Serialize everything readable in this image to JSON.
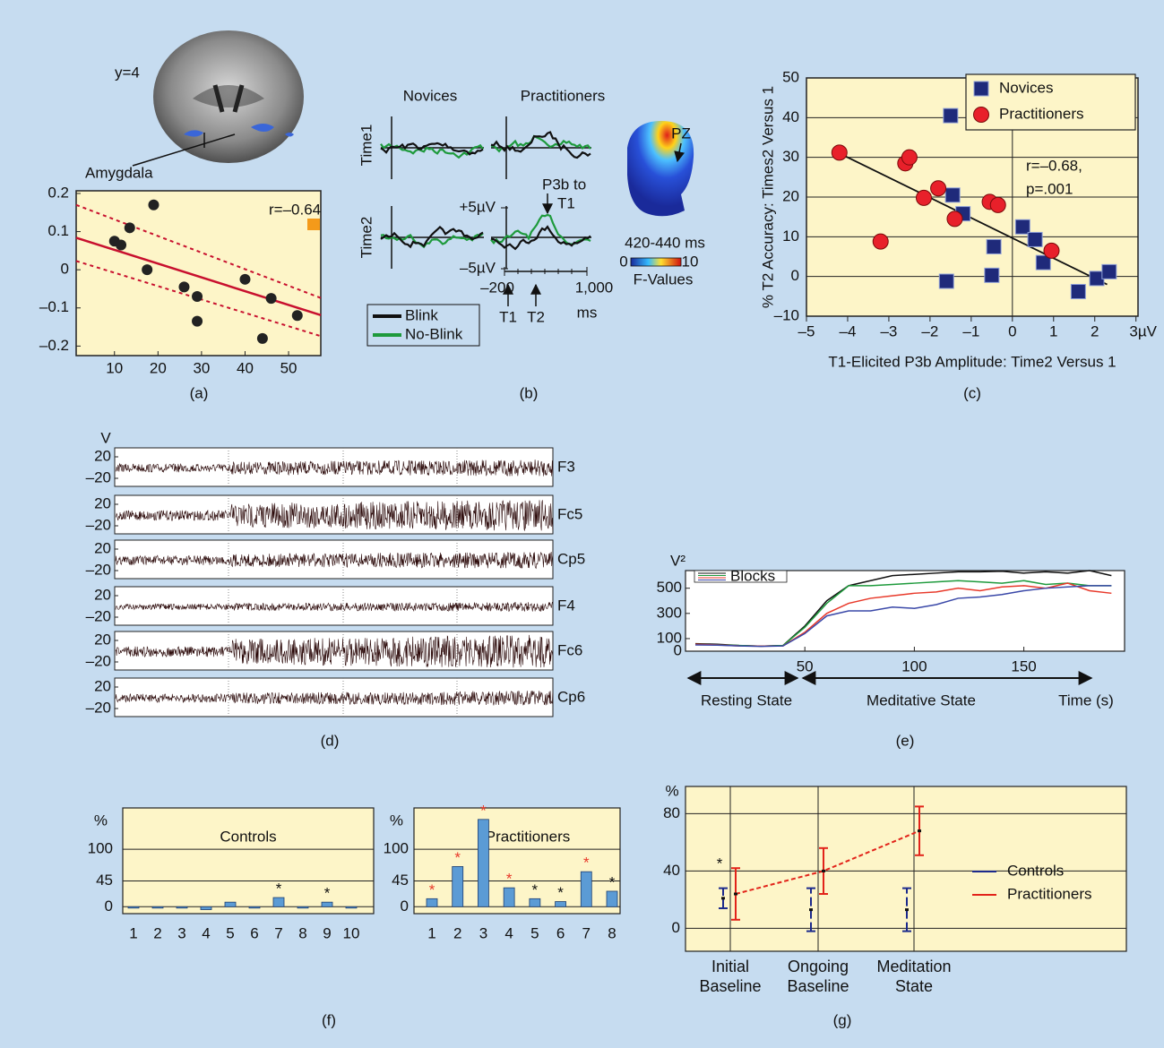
{
  "chart_data": [
    {
      "type": "scatter",
      "panel": "(a)",
      "annotations": [
        "y=4",
        "Amygdala",
        "r=–0.64"
      ],
      "xlim": [
        1.2,
        57.4
      ],
      "ylim": [
        -0.225,
        0.207
      ],
      "xticks": [
        10,
        20,
        30,
        40,
        50
      ],
      "yticks": [
        0.2,
        0.1,
        0,
        {
          "value": -0.1,
          "label": "–0.1"
        },
        {
          "value": -0.2,
          "label": "–0.2"
        }
      ],
      "series": [
        {
          "color": "#222222",
          "x": [
            10,
            11.5,
            13.5,
            17.5,
            19,
            26,
            29,
            29,
            40,
            44,
            46,
            52
          ],
          "values": [
            0.075,
            0.065,
            0.11,
            0.0,
            0.17,
            -0.045,
            -0.07,
            -0.135,
            -0.025,
            -0.18,
            -0.075,
            -0.12
          ]
        }
      ],
      "lines": [
        {
          "color": "#c8102e",
          "dash": false,
          "x": [
            1.2,
            57.4
          ],
          "values": [
            0.084,
            -0.119
          ]
        },
        {
          "color": "#c8102e",
          "dash": true,
          "x": [
            1.2,
            57.4
          ],
          "values": [
            0.17,
            -0.074
          ]
        },
        {
          "color": "#c8102e",
          "dash": true,
          "x": [
            1.2,
            57.4
          ],
          "values": [
            0.023,
            -0.174
          ]
        }
      ]
    },
    {
      "type": "erp",
      "panel": "(b)",
      "column_titles": [
        "Novices",
        "Practitioners"
      ],
      "row_titles": [
        "Time1",
        "Time2"
      ],
      "xticks": [
        {
          "value": -200,
          "label": "–200"
        },
        {
          "value": 1000,
          "label": "1,000"
        }
      ],
      "xunit": "ms",
      "yticks": [
        {
          "value": 5,
          "label": "+5µV"
        },
        {
          "value": -5,
          "label": "–5µV"
        }
      ],
      "annotations": [
        "P3b to",
        "T1",
        "PZ",
        "420-440 ms",
        "F-Values"
      ],
      "markers": [
        "T1",
        "T2"
      ],
      "colorbar_lim": [
        0,
        10
      ],
      "legend": [
        {
          "name": "Blink",
          "color": "#111111"
        },
        {
          "name": "No-Blink",
          "color": "#1e9a3c"
        }
      ]
    },
    {
      "type": "scatter",
      "panel": "(c)",
      "xlabel": "T1-Elicited P3b Amplitude: Time2 Versus 1",
      "ylabel": "% T2 Accuracy: Times2 Versus 1",
      "legend": "upper right",
      "grid": true,
      "annotations": [
        "r=–0.68,",
        "p=.001"
      ],
      "xlim": [
        -5,
        3.05
      ],
      "ylim": [
        -10,
        50
      ],
      "xticks": [
        {
          "value": -5,
          "label": "–5"
        },
        {
          "value": -4,
          "label": "–4"
        },
        {
          "value": -3,
          "label": "–3"
        },
        {
          "value": -2,
          "label": "–2"
        },
        {
          "value": -1,
          "label": "–1"
        },
        0,
        1,
        2,
        {
          "value": 3,
          "label": "3µV"
        }
      ],
      "yticks": [
        {
          "value": -10,
          "label": "–10"
        },
        0,
        10,
        20,
        30,
        40,
        50
      ],
      "series": [
        {
          "name": "Novices",
          "color": "#1f2a7a",
          "marker": "square",
          "x": [
            -1.5,
            -1.45,
            -1.2,
            -1.6,
            -0.5,
            -0.45,
            0.25,
            0.55,
            0.75,
            1.6,
            2.05,
            2.35
          ],
          "values": [
            40.5,
            20.5,
            15.8,
            -1.2,
            0.3,
            7.5,
            12.5,
            9.3,
            3.5,
            -3.8,
            -0.5,
            1.2
          ]
        },
        {
          "name": "Practitioners",
          "color": "#e8202a",
          "marker": "circle",
          "x": [
            -4.2,
            -3.2,
            -2.6,
            -2.5,
            -2.15,
            -1.8,
            -1.4,
            -0.55,
            -0.35,
            0.95
          ],
          "values": [
            31.2,
            8.8,
            28.5,
            30,
            19.8,
            22.2,
            14.5,
            18.8,
            18,
            6.5
          ]
        }
      ],
      "lines": [
        {
          "color": "#111111",
          "dash": false,
          "x": [
            -4.2,
            2.3
          ],
          "values": [
            31,
            -2
          ]
        }
      ]
    },
    {
      "type": "eeg",
      "panel": "(d)",
      "ylabel": "V",
      "yticks": [
        20,
        {
          "value": -20,
          "label": "–20"
        }
      ],
      "channels": [
        "F3",
        "Fc5",
        "Cp5",
        "F4",
        "Fc6",
        "Cp6"
      ]
    },
    {
      "type": "line",
      "panel": "(e)",
      "ylabel": "V²",
      "legend_label": "Blocks",
      "annotations": [
        "Resting State",
        "Meditative State",
        "Time (s)"
      ],
      "xlim": [
        -4.5,
        196
      ],
      "ylim": [
        0,
        640
      ],
      "xticks": [
        50,
        100,
        150
      ],
      "yticks": [
        0,
        100,
        300,
        500
      ],
      "x": [
        0,
        10,
        20,
        30,
        40,
        50,
        60,
        70,
        80,
        90,
        100,
        110,
        120,
        130,
        140,
        150,
        160,
        170,
        180,
        190
      ],
      "series": [
        {
          "color": "#111111",
          "values": [
            60,
            55,
            45,
            40,
            45,
            200,
            400,
            520,
            560,
            600,
            610,
            620,
            630,
            630,
            635,
            620,
            630,
            620,
            640,
            600
          ]
        },
        {
          "color": "#1e9a3c",
          "values": [
            55,
            50,
            45,
            40,
            45,
            190,
            380,
            520,
            520,
            530,
            540,
            550,
            560,
            550,
            540,
            560,
            530,
            540,
            520,
            520
          ]
        },
        {
          "color": "#e8392a",
          "values": [
            55,
            50,
            42,
            40,
            42,
            150,
            300,
            380,
            420,
            440,
            460,
            470,
            500,
            480,
            510,
            520,
            500,
            540,
            480,
            460
          ]
        },
        {
          "color": "#3a48a8",
          "values": [
            50,
            48,
            42,
            38,
            42,
            140,
            280,
            320,
            320,
            350,
            340,
            370,
            420,
            430,
            450,
            480,
            500,
            510,
            520,
            520
          ]
        }
      ]
    },
    {
      "type": "bar",
      "panel": "(f)",
      "ylabel": "%",
      "ylim": [
        -12,
        172
      ],
      "yticks": [
        0,
        45,
        100
      ],
      "grid": true,
      "color": "#5b9bd5",
      "charts": [
        {
          "title": "Controls",
          "categories": [
            1,
            2,
            3,
            4,
            5,
            6,
            7,
            8,
            9,
            10
          ],
          "values": [
            -1,
            0,
            0,
            -5,
            8,
            -1,
            16,
            0,
            8,
            -1
          ],
          "asterisks": [
            null,
            null,
            null,
            null,
            null,
            null,
            "*",
            null,
            "*",
            null
          ],
          "asterisk_colors": [
            null,
            null,
            null,
            null,
            null,
            null,
            "#111111",
            null,
            "#111111",
            null
          ]
        },
        {
          "title": "Practitioners",
          "categories": [
            1,
            2,
            3,
            4,
            5,
            6,
            7,
            8
          ],
          "values": [
            14,
            70,
            152,
            33,
            14,
            9,
            61,
            27
          ],
          "asterisks": [
            "*",
            "*",
            "*",
            "*",
            "*",
            "*",
            "*",
            "*"
          ],
          "asterisk_colors": [
            "#e8392a",
            "#e8392a",
            "#e8392a",
            "#e8392a",
            "#111111",
            "#111111",
            "#e8392a",
            "#111111"
          ]
        }
      ]
    },
    {
      "type": "errorbar",
      "panel": "(g)",
      "ylabel": "%",
      "ylim": [
        -16,
        99
      ],
      "yticks": [
        0,
        40,
        80
      ],
      "grid": true,
      "categories": [
        "Initial Baseline",
        "Ongoing Baseline",
        "Meditation State"
      ],
      "asterisks": [
        "*",
        null,
        null
      ],
      "series": [
        {
          "name": "Controls",
          "color": "#1c2a8c",
          "values": [
            21,
            13,
            13
          ],
          "errors": [
            7,
            15,
            15
          ]
        },
        {
          "name": "Practitioners",
          "color": "#e2231a",
          "values": [
            24,
            40,
            68
          ],
          "errors": [
            18,
            16,
            17
          ]
        }
      ]
    }
  ]
}
